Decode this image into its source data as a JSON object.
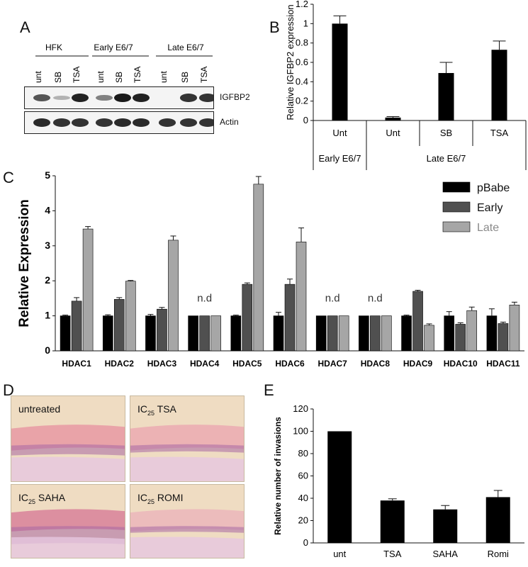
{
  "panels": {
    "A": "A",
    "B": "B",
    "C": "C",
    "D": "D",
    "E": "E"
  },
  "blot": {
    "groups": [
      "HFK",
      "Early E6/7",
      "Late E6/7"
    ],
    "lanes": [
      "unt",
      "SB",
      "TSA",
      "unt",
      "SB",
      "TSA",
      "unt",
      "SB",
      "TSA"
    ],
    "rows": [
      "IGFBP2",
      "Actin"
    ],
    "igfbp2_intensity": [
      0.6,
      0.05,
      0.9,
      0.35,
      0.95,
      0.9,
      0.0,
      0.8,
      0.8
    ],
    "actin_intensity": [
      0.85,
      0.8,
      0.8,
      0.8,
      0.85,
      0.85,
      0.8,
      0.8,
      0.8
    ]
  },
  "histology": [
    {
      "label": "untreated",
      "tone": "#e9a3a8"
    },
    {
      "label_main": "IC",
      "label_sub": "25",
      "label_rest": " TSA",
      "tone": "#ecb2b4"
    },
    {
      "label_main": "IC",
      "label_sub": "25",
      "label_rest": " SAHA",
      "tone": "#dc8fa0"
    },
    {
      "label_main": "IC",
      "label_sub": "25",
      "label_rest": " ROMI",
      "tone": "#ecbcbc"
    }
  ],
  "chart_data": [
    {
      "id": "B",
      "type": "bar",
      "categories": [
        "Unt",
        "Unt",
        "SB",
        "TSA"
      ],
      "groups": [
        {
          "label": "Early E6/7",
          "span": [
            0,
            1
          ]
        },
        {
          "label": "Late E6/7",
          "span": [
            1,
            4
          ]
        }
      ],
      "values": [
        1.0,
        0.03,
        0.49,
        0.73
      ],
      "errors": [
        0.08,
        0.01,
        0.11,
        0.09
      ],
      "ylabel": "Relative IGFBP2 expression",
      "ylim": [
        0,
        1.2
      ],
      "yticks": [
        "0",
        "0.2",
        "0.4",
        "0.6",
        "0.8",
        "1",
        "1.2"
      ],
      "ytick_values": [
        0,
        0.2,
        0.4,
        0.6,
        0.8,
        1.0,
        1.2
      ]
    },
    {
      "id": "C",
      "type": "bar",
      "categories": [
        "HDAC1",
        "HDAC2",
        "HDAC3",
        "HDAC4",
        "HDAC5",
        "HDAC6",
        "HDAC7",
        "HDAC8",
        "HDAC9",
        "HDAC10",
        "HDAC11"
      ],
      "series": [
        {
          "name": "pBabe",
          "color": "#000000",
          "values": [
            1,
            1,
            1,
            1,
            1,
            1,
            1,
            1,
            1,
            1,
            1
          ],
          "errors": [
            0.02,
            0.03,
            0.04,
            0,
            0.02,
            0.1,
            0,
            0,
            0.02,
            0.12,
            0.2
          ]
        },
        {
          "name": "Early",
          "color": "#505050",
          "values": [
            1.42,
            1.47,
            1.19,
            1,
            1.9,
            1.9,
            1,
            1,
            1.7,
            0.76,
            0.78
          ],
          "errors": [
            0.1,
            0.05,
            0.05,
            0,
            0.04,
            0.15,
            0,
            0,
            0.03,
            0.04,
            0.04
          ]
        },
        {
          "name": "Late",
          "color": "#a6a6a6",
          "values": [
            3.48,
            1.99,
            3.16,
            1,
            4.76,
            3.11,
            1,
            1,
            0.73,
            1.15,
            1.31
          ],
          "errors": [
            0.07,
            0.02,
            0.12,
            0,
            0.22,
            0.4,
            0,
            0,
            0.04,
            0.1,
            0.08
          ]
        }
      ],
      "annotations": [
        {
          "category": "HDAC4",
          "text": "n.d"
        },
        {
          "category": "HDAC7",
          "text": "n.d"
        },
        {
          "category": "HDAC8",
          "text": "n.d"
        }
      ],
      "ylabel": "Relative Expression",
      "ylim": [
        0,
        5
      ],
      "yticks": [
        "0",
        "1",
        "2",
        "3",
        "4",
        "5"
      ],
      "ytick_values": [
        0,
        1,
        2,
        3,
        4,
        5
      ],
      "legend": "top-right"
    },
    {
      "id": "E",
      "type": "bar",
      "categories": [
        "unt",
        "TSA",
        "SAHA",
        "Romi"
      ],
      "values": [
        100,
        38,
        30,
        41
      ],
      "errors": [
        0,
        1.5,
        3.5,
        6
      ],
      "ylabel": "Relative number of invasions",
      "ylim": [
        0,
        120
      ],
      "yticks": [
        "0",
        "20",
        "40",
        "60",
        "80",
        "100",
        "120"
      ],
      "ytick_values": [
        0,
        20,
        40,
        60,
        80,
        100,
        120
      ]
    }
  ]
}
